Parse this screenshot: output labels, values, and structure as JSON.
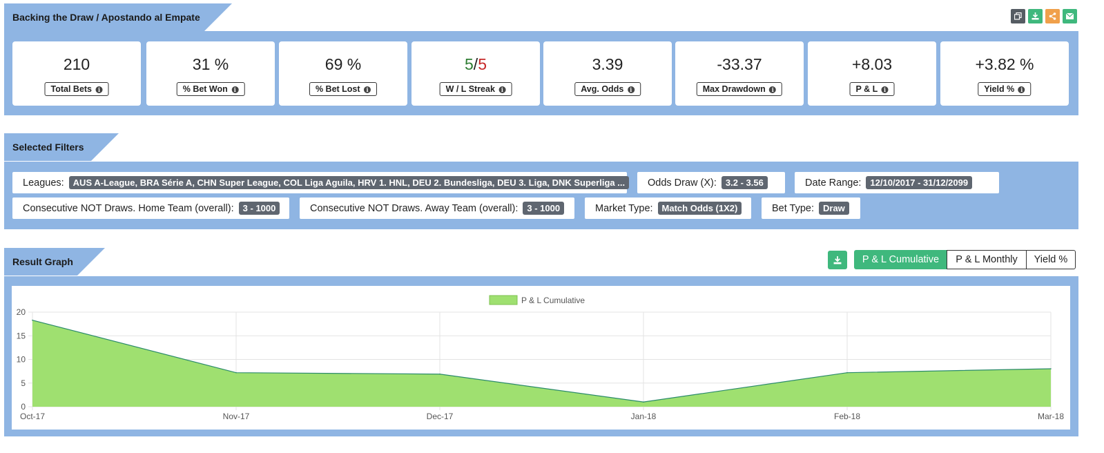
{
  "sections": {
    "summary_title": "Backing the Draw / Apostando al Empate",
    "filters_title": "Selected Filters",
    "graph_title": "Result Graph"
  },
  "icons": {
    "copy": "copy-icon",
    "download": "download-icon",
    "share": "share-icon",
    "mail": "mail-icon"
  },
  "stats": [
    {
      "value": "210",
      "label": "Total Bets"
    },
    {
      "value": "31 %",
      "label": "% Bet Won"
    },
    {
      "value": "69 %",
      "label": "% Bet Lost"
    },
    {
      "value_win": "5",
      "value_sep": "/",
      "value_loss": "5",
      "label": "W / L Streak"
    },
    {
      "value": "3.39",
      "label": "Avg. Odds"
    },
    {
      "value": "-33.37",
      "label": "Max Drawdown"
    },
    {
      "value": "+8.03",
      "label": "P & L"
    },
    {
      "value": "+3.82 %",
      "label": "Yield %"
    }
  ],
  "filters": {
    "leagues_label": "Leagues:",
    "leagues_value": "AUS A-League, BRA Série A, CHN Super League, COL Liga Aguila, HRV 1. HNL, DEU 2. Bundesliga, DEU 3. Liga, DNK Superliga ...",
    "odds_label": "Odds Draw (X):",
    "odds_value": "3.2 - 3.56",
    "date_label": "Date Range:",
    "date_value": "12/10/2017 - 31/12/2099",
    "home_label": "Consecutive NOT Draws. Home Team (overall):",
    "home_value": "3 - 1000",
    "away_label": "Consecutive NOT Draws. Away Team (overall):",
    "away_value": "3 - 1000",
    "market_label": "Market Type:",
    "market_value": "Match Odds (1X2)",
    "bettype_label": "Bet Type:",
    "bettype_value": "Draw"
  },
  "graph_buttons": {
    "cumulative": "P & L Cumulative",
    "monthly": "P & L Monthly",
    "yield": "Yield %"
  },
  "colors": {
    "band": "#8fb5e3",
    "accent": "#3fb87d",
    "area_fill": "#9fe070",
    "area_line": "#2a8a6a"
  },
  "chart_data": {
    "type": "area",
    "categories": [
      "Oct-17",
      "Nov-17",
      "Dec-17",
      "Jan-18",
      "Feb-18",
      "Mar-18"
    ],
    "series": [
      {
        "name": "P & L Cumulative",
        "values": [
          18.3,
          7.2,
          6.9,
          1.0,
          7.2,
          8.03
        ]
      }
    ],
    "ylim": [
      0,
      20
    ],
    "yticks": [
      0,
      5,
      10,
      15,
      20
    ],
    "grid": true,
    "legend": "top-center"
  }
}
